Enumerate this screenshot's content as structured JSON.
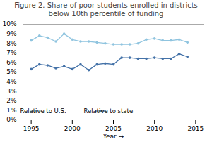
{
  "chart_data": {
    "type": "line",
    "title": "Figure 2. Share of poor students enrolled in districts\nbelow 10th percentile of funding",
    "xlabel": "Year",
    "x": [
      1995,
      1996,
      1997,
      1998,
      1999,
      2000,
      2001,
      2002,
      2003,
      2004,
      2005,
      2006,
      2007,
      2008,
      2009,
      2010,
      2011,
      2012,
      2013,
      2014
    ],
    "series": [
      {
        "name": "Relative to U.S.",
        "color": "#8fc4df",
        "values": [
          0.083,
          0.088,
          0.086,
          0.082,
          0.09,
          0.084,
          0.082,
          0.082,
          0.081,
          0.08,
          0.079,
          0.079,
          0.079,
          0.08,
          0.084,
          0.085,
          0.083,
          0.083,
          0.084,
          0.081
        ]
      },
      {
        "name": "Relative to state",
        "color": "#4472a8",
        "values": [
          0.053,
          0.058,
          0.057,
          0.054,
          0.056,
          0.053,
          0.058,
          0.052,
          0.058,
          0.059,
          0.058,
          0.065,
          0.065,
          0.064,
          0.064,
          0.065,
          0.064,
          0.064,
          0.069,
          0.066
        ]
      }
    ],
    "xlim": [
      1994,
      2016
    ],
    "xticks": [
      1995,
      2000,
      2005,
      2010,
      2015
    ],
    "ylim": [
      0,
      0.1
    ],
    "yticks": [
      {
        "value": 0.0,
        "label": "0%"
      },
      {
        "value": 0.01,
        "label": "1%"
      },
      {
        "value": 0.02,
        "label": "2%"
      },
      {
        "value": 0.03,
        "label": "3%"
      },
      {
        "value": 0.04,
        "label": "4%"
      },
      {
        "value": 0.05,
        "label": "5%"
      },
      {
        "value": 0.06,
        "label": "6%"
      },
      {
        "value": 0.07,
        "label": "7%"
      },
      {
        "value": 0.08,
        "label": "8%"
      },
      {
        "value": 0.09,
        "label": "9%"
      },
      {
        "value": 0.1,
        "label": "10%"
      }
    ],
    "grid": false,
    "legend": "lower left",
    "marker": "circle"
  }
}
